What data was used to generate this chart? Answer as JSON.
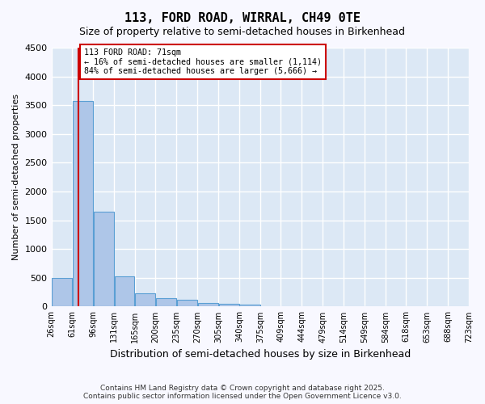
{
  "title": "113, FORD ROAD, WIRRAL, CH49 0TE",
  "subtitle": "Size of property relative to semi-detached houses in Birkenhead",
  "xlabel": "Distribution of semi-detached houses by size in Birkenhead",
  "ylabel": "Number of semi-detached properties",
  "property_size": 71,
  "property_label": "113 FORD ROAD: 71sqm",
  "pct_smaller": 16,
  "pct_larger": 84,
  "count_smaller": 1114,
  "count_larger": 5666,
  "bar_color": "#aec6e8",
  "bar_edge_color": "#5a9fd4",
  "highlight_color": "#cc0000",
  "annotation_box_color": "#cc0000",
  "background_color": "#dce8f5",
  "grid_color": "#ffffff",
  "bin_edges": [
    26,
    61,
    96,
    131,
    165,
    200,
    235,
    270,
    305,
    340,
    375,
    409,
    444,
    479,
    514,
    549,
    584,
    618,
    653,
    688,
    723
  ],
  "bin_labels": [
    "26sqm",
    "61sqm",
    "96sqm",
    "131sqm",
    "165sqm",
    "200sqm",
    "235sqm",
    "270sqm",
    "305sqm",
    "340sqm",
    "375sqm",
    "409sqm",
    "444sqm",
    "479sqm",
    "514sqm",
    "549sqm",
    "584sqm",
    "618sqm",
    "653sqm",
    "688sqm",
    "723sqm"
  ],
  "values": [
    500,
    3570,
    1650,
    530,
    230,
    150,
    115,
    65,
    45,
    30,
    10,
    5,
    0,
    0,
    0,
    0,
    0,
    0,
    0,
    0
  ],
  "ylim": [
    0,
    4500
  ],
  "yticks": [
    0,
    500,
    1000,
    1500,
    2000,
    2500,
    3000,
    3500,
    4000,
    4500
  ],
  "footer_line1": "Contains HM Land Registry data © Crown copyright and database right 2025.",
  "footer_line2": "Contains public sector information licensed under the Open Government Licence v3.0."
}
